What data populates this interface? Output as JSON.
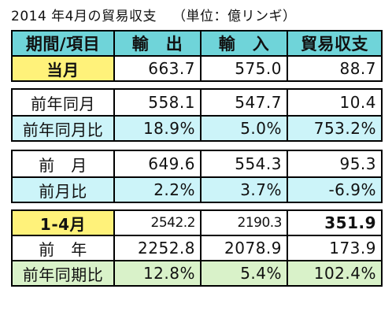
{
  "title": "2014 年4月の貿易収支",
  "unit": "（単位：億リンギ）",
  "headers": [
    "期間/項目",
    "輸　出",
    "輸　入",
    "貿易収支"
  ],
  "rows": {
    "current_month": {
      "label": "当月",
      "exports": "663.7",
      "imports": "575.0",
      "balance": "88.7"
    },
    "prev_year_month": {
      "label": "前年同月",
      "exports": "558.1",
      "imports": "547.7",
      "balance": "10.4"
    },
    "yoy": {
      "label": "前年同月比",
      "exports": "18.9%",
      "imports": "5.0%",
      "balance": "753.2%"
    },
    "prev_month": {
      "label": "前　月",
      "exports": "649.6",
      "imports": "554.3",
      "balance": "95.3"
    },
    "mom": {
      "label": "前月比",
      "exports": "2.2%",
      "imports": "3.7%",
      "balance": "-6.9%"
    },
    "ytd": {
      "label": "1-4月",
      "exports": "2542.2",
      "imports": "2190.3",
      "balance": "351.9"
    },
    "prev_year": {
      "label": "前　年",
      "exports": "2252.8",
      "imports": "2078.9",
      "balance": "173.9"
    },
    "ytd_yoy": {
      "label": "前年同期比",
      "exports": "12.8%",
      "imports": "5.4%",
      "balance": "102.4%"
    }
  }
}
